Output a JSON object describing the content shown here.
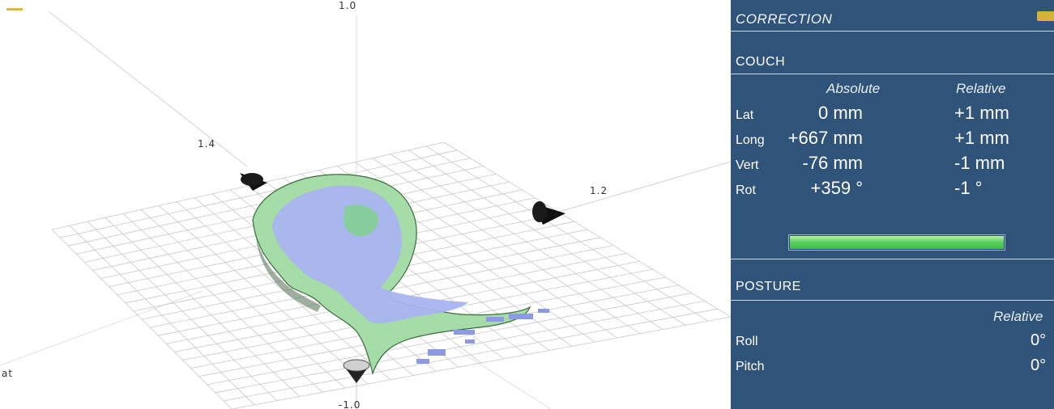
{
  "viewport": {
    "axis_labels": {
      "left": "1.4",
      "right": "1.2",
      "bottom": "-1.0",
      "top": "1.0",
      "edge_left": "at"
    }
  },
  "panel": {
    "title": "CORRECTION",
    "couch": {
      "title": "COUCH",
      "col_absolute": "Absolute",
      "col_relative": "Relative",
      "rows": [
        {
          "label": "Lat",
          "absolute": "0 mm",
          "relative": "+1 mm"
        },
        {
          "label": "Long",
          "absolute": "+667 mm",
          "relative": "+1 mm"
        },
        {
          "label": "Vert",
          "absolute": "-76 mm",
          "relative": "-1 mm"
        },
        {
          "label": "Rot",
          "absolute": "+359 °",
          "relative": "-1 °"
        }
      ],
      "progress_fraction": 1.0
    },
    "posture": {
      "title": "POSTURE",
      "col_relative": "Relative",
      "rows": [
        {
          "label": "Roll",
          "relative": "0°"
        },
        {
          "label": "Pitch",
          "relative": "0°"
        }
      ]
    }
  },
  "colors": {
    "panel_bg": "#30537a",
    "surface_green": "#9dd9a0",
    "surface_blue": "#a9b4ef",
    "progress_green": "#4cc954"
  }
}
